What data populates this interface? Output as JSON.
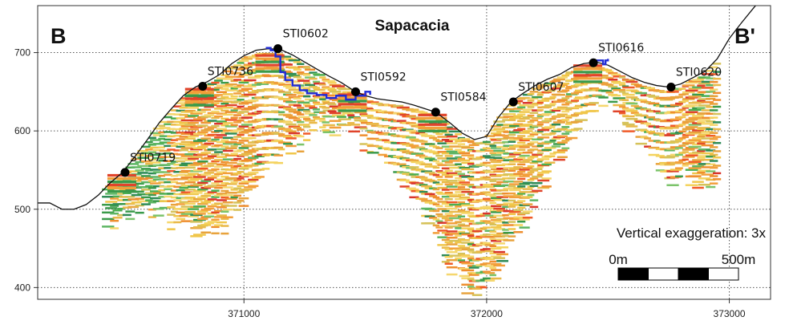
{
  "chart_data": {
    "type": "cross-section",
    "title": "Sapacacia",
    "corner_left": "B",
    "corner_right": "B'",
    "xlim": [
      370150,
      373170
    ],
    "ylim": [
      385,
      760
    ],
    "xticks": [
      371000,
      372000,
      373000
    ],
    "yticks": [
      400,
      500,
      600,
      700
    ],
    "grid": true,
    "terrain_profile": [
      [
        370150,
        508
      ],
      [
        370200,
        508
      ],
      [
        370250,
        500
      ],
      [
        370300,
        500
      ],
      [
        370350,
        506
      ],
      [
        370400,
        518
      ],
      [
        370450,
        534
      ],
      [
        370500,
        547
      ],
      [
        370550,
        567
      ],
      [
        370600,
        588
      ],
      [
        370650,
        610
      ],
      [
        370700,
        628
      ],
      [
        370750,
        645
      ],
      [
        370800,
        656
      ],
      [
        370850,
        663
      ],
      [
        370900,
        672
      ],
      [
        370950,
        686
      ],
      [
        371000,
        696
      ],
      [
        371050,
        703
      ],
      [
        371100,
        705
      ],
      [
        371150,
        704
      ],
      [
        371200,
        697
      ],
      [
        371250,
        688
      ],
      [
        371300,
        679
      ],
      [
        371350,
        670
      ],
      [
        371400,
        662
      ],
      [
        371450,
        652
      ],
      [
        371500,
        645
      ],
      [
        371550,
        641
      ],
      [
        371600,
        639
      ],
      [
        371650,
        637
      ],
      [
        371700,
        633
      ],
      [
        371750,
        628
      ],
      [
        371790,
        624
      ],
      [
        371850,
        610
      ],
      [
        371900,
        597
      ],
      [
        371950,
        589
      ],
      [
        372000,
        593
      ],
      [
        372050,
        618
      ],
      [
        372100,
        637
      ],
      [
        372150,
        648
      ],
      [
        372200,
        658
      ],
      [
        372250,
        666
      ],
      [
        372300,
        672
      ],
      [
        372350,
        681
      ],
      [
        372400,
        686
      ],
      [
        372450,
        688
      ],
      [
        372500,
        684
      ],
      [
        372550,
        676
      ],
      [
        372600,
        668
      ],
      [
        372650,
        662
      ],
      [
        372700,
        658
      ],
      [
        372750,
        656
      ],
      [
        372800,
        660
      ],
      [
        372850,
        668
      ],
      [
        372900,
        676
      ],
      [
        372950,
        692
      ],
      [
        373000,
        718
      ],
      [
        373050,
        738
      ],
      [
        373100,
        757
      ],
      [
        373170,
        782
      ]
    ],
    "wells": [
      {
        "name": "STI0719",
        "x": 370510,
        "y": 547
      },
      {
        "name": "STI0736",
        "x": 370830,
        "y": 657
      },
      {
        "name": "STI0602",
        "x": 371140,
        "y": 705
      },
      {
        "name": "STI0592",
        "x": 371460,
        "y": 650
      },
      {
        "name": "STI0584",
        "x": 371790,
        "y": 624
      },
      {
        "name": "STI0607",
        "x": 372110,
        "y": 637
      },
      {
        "name": "STI0616",
        "x": 372440,
        "y": 687
      },
      {
        "name": "STI0620",
        "x": 372760,
        "y": 656
      }
    ],
    "blue_line": [
      [
        371090,
        706
      ],
      [
        371110,
        703
      ],
      [
        371130,
        695
      ],
      [
        371150,
        675
      ],
      [
        371170,
        665
      ],
      [
        371200,
        658
      ],
      [
        371230,
        652
      ],
      [
        371260,
        648
      ],
      [
        371300,
        646
      ],
      [
        371340,
        642
      ],
      [
        371380,
        645
      ],
      [
        371420,
        640
      ],
      [
        371460,
        645
      ],
      [
        371500,
        650
      ],
      [
        371520,
        646
      ]
    ],
    "blue_line_2": [
      [
        372440,
        690
      ],
      [
        372470,
        690
      ],
      [
        372480,
        685
      ],
      [
        372490,
        690
      ],
      [
        372500,
        692
      ]
    ],
    "annotation": "Vertical exaggeration: 3x",
    "scale_bar": {
      "start_label": "0m",
      "end_label": "500m",
      "segments": 4
    }
  }
}
